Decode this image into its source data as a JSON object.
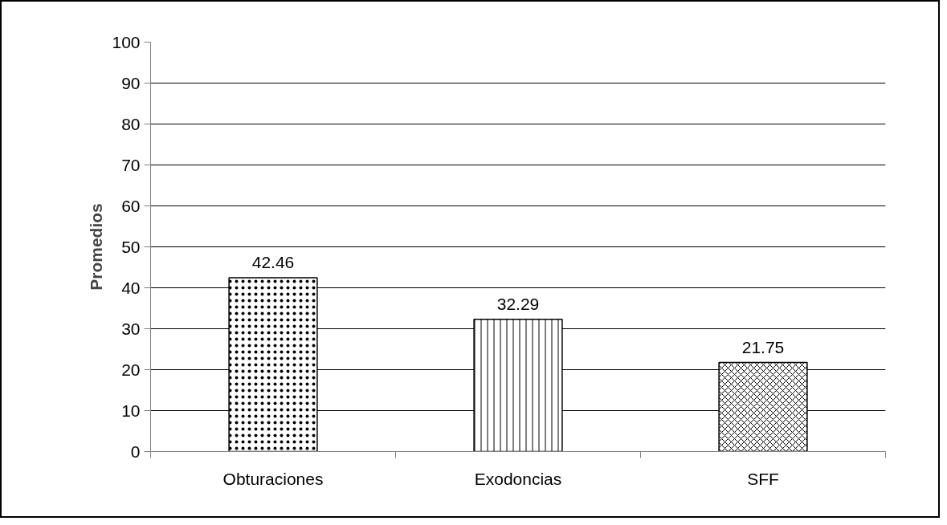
{
  "chart_data": {
    "type": "bar",
    "ylabel": "Promedios",
    "categories": [
      "Obturaciones",
      "Exodoncias",
      "SFF"
    ],
    "values": [
      42.46,
      32.29,
      21.75
    ],
    "color": "#ffffff",
    "ylim": [
      0,
      100
    ],
    "yticks": [
      0,
      10,
      20,
      30,
      40,
      50,
      60,
      70,
      80,
      90,
      100
    ],
    "grid": "y",
    "data_labels": true
  }
}
